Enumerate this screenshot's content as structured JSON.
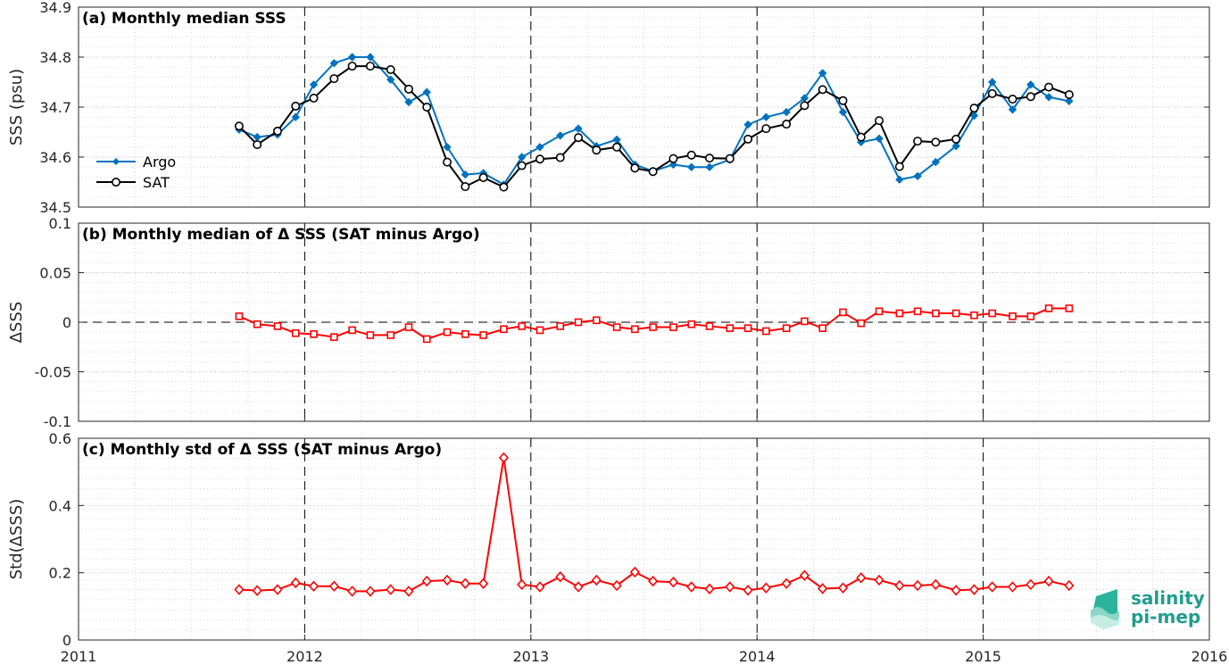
{
  "logo": {
    "line1": "salinity",
    "line2": "pi-mep"
  },
  "chart_data": [
    {
      "type": "line",
      "title": "(a) Monthly median SSS",
      "ylabel": "SSS (psu)",
      "xlim": [
        2011,
        2016
      ],
      "ylim": [
        34.5,
        34.9
      ],
      "yticks": [
        "34.5",
        "34.6",
        "34.7",
        "34.8",
        "34.9"
      ],
      "xticks": [
        "2011",
        "2012",
        "2013",
        "2014",
        "2015",
        "2016"
      ],
      "grid": true,
      "legend": "left",
      "x": [
        2011.71,
        2011.79,
        2011.88,
        2011.96,
        2012.04,
        2012.13,
        2012.21,
        2012.29,
        2012.38,
        2012.46,
        2012.54,
        2012.63,
        2012.71,
        2012.79,
        2012.88,
        2012.96,
        2013.04,
        2013.13,
        2013.21,
        2013.29,
        2013.38,
        2013.46,
        2013.54,
        2013.63,
        2013.71,
        2013.79,
        2013.88,
        2013.96,
        2014.04,
        2014.13,
        2014.21,
        2014.29,
        2014.38,
        2014.46,
        2014.54,
        2014.63,
        2014.71,
        2014.79,
        2014.88,
        2014.96,
        2015.04,
        2015.13,
        2015.21,
        2015.29,
        2015.38
      ],
      "series": [
        {
          "name": "Argo",
          "color": "#0072bd",
          "marker": "diamond",
          "values": [
            34.655,
            34.64,
            34.645,
            34.68,
            34.745,
            34.788,
            34.8,
            34.8,
            34.755,
            34.71,
            34.73,
            34.62,
            34.565,
            34.568,
            34.545,
            34.6,
            34.62,
            34.643,
            34.657,
            34.622,
            34.635,
            34.585,
            34.572,
            34.585,
            34.58,
            34.58,
            34.595,
            34.665,
            34.68,
            34.69,
            34.718,
            34.768,
            34.69,
            34.63,
            34.637,
            34.555,
            34.562,
            34.59,
            34.622,
            34.683,
            34.75,
            34.695,
            34.745,
            34.72,
            34.712
          ]
        },
        {
          "name": "SAT",
          "color": "#000000",
          "marker": "circle",
          "values": [
            34.662,
            34.625,
            34.652,
            34.702,
            34.718,
            34.757,
            34.782,
            34.782,
            34.775,
            34.736,
            34.7,
            34.59,
            34.541,
            34.559,
            34.54,
            34.583,
            34.596,
            34.599,
            34.639,
            34.614,
            34.62,
            34.578,
            34.571,
            34.597,
            34.604,
            34.598,
            34.597,
            34.636,
            34.657,
            34.666,
            34.703,
            34.735,
            34.713,
            34.64,
            34.673,
            34.581,
            34.632,
            34.63,
            34.636,
            34.698,
            34.727,
            34.716,
            34.721,
            34.74,
            34.725
          ]
        }
      ]
    },
    {
      "type": "line",
      "title": "(b) Monthly median of Δ SSS (SAT minus Argo)",
      "ylabel": "ΔSSS",
      "xlim": [
        2011,
        2016
      ],
      "ylim": [
        -0.1,
        0.1
      ],
      "yticks": [
        "-0.1",
        "-0.05",
        "0",
        "0.05",
        "0.1"
      ],
      "xticks": [
        "2011",
        "2012",
        "2013",
        "2014",
        "2015",
        "2016"
      ],
      "grid": true,
      "x": [
        2011.71,
        2011.79,
        2011.88,
        2011.96,
        2012.04,
        2012.13,
        2012.21,
        2012.29,
        2012.38,
        2012.46,
        2012.54,
        2012.63,
        2012.71,
        2012.79,
        2012.88,
        2012.96,
        2013.04,
        2013.13,
        2013.21,
        2013.29,
        2013.38,
        2013.46,
        2013.54,
        2013.63,
        2013.71,
        2013.79,
        2013.88,
        2013.96,
        2014.04,
        2014.13,
        2014.21,
        2014.29,
        2014.38,
        2014.46,
        2014.54,
        2014.63,
        2014.71,
        2014.79,
        2014.88,
        2014.96,
        2015.04,
        2015.13,
        2015.21,
        2015.29,
        2015.38
      ],
      "series": [
        {
          "color": "#ff0000",
          "marker": "square",
          "values": [
            0.006,
            -0.002,
            -0.004,
            -0.011,
            -0.012,
            -0.015,
            -0.008,
            -0.013,
            -0.013,
            -0.005,
            -0.017,
            -0.01,
            -0.012,
            -0.013,
            -0.007,
            -0.004,
            -0.008,
            -0.004,
            0,
            0.002,
            -0.005,
            -0.007,
            -0.005,
            -0.005,
            -0.002,
            -0.004,
            -0.006,
            -0.006,
            -0.009,
            -0.006,
            0.001,
            -0.006,
            0.01,
            -0.001,
            0.011,
            0.009,
            0.011,
            0.009,
            0.009,
            0.007,
            0.009,
            0.006,
            0.006,
            0.014,
            0.014
          ]
        }
      ]
    },
    {
      "type": "line",
      "title": "(c) Monthly std of Δ SSS (SAT minus Argo)",
      "ylabel": "Std(ΔSSS)",
      "xlim": [
        2011,
        2016
      ],
      "ylim": [
        0,
        0.6
      ],
      "yticks": [
        "0",
        "0.2",
        "0.4",
        "0.6"
      ],
      "xticks": [
        "2011",
        "2012",
        "2013",
        "2014",
        "2015",
        "2016"
      ],
      "grid": true,
      "x": [
        2011.71,
        2011.79,
        2011.88,
        2011.96,
        2012.04,
        2012.13,
        2012.21,
        2012.29,
        2012.38,
        2012.46,
        2012.54,
        2012.63,
        2012.71,
        2012.79,
        2012.88,
        2012.96,
        2013.04,
        2013.13,
        2013.21,
        2013.29,
        2013.38,
        2013.46,
        2013.54,
        2013.63,
        2013.71,
        2013.79,
        2013.88,
        2013.96,
        2014.04,
        2014.13,
        2014.21,
        2014.29,
        2014.38,
        2014.46,
        2014.54,
        2014.63,
        2014.71,
        2014.79,
        2014.88,
        2014.96,
        2015.04,
        2015.13,
        2015.21,
        2015.29,
        2015.38
      ],
      "series": [
        {
          "color": "#ff0000",
          "marker": "diamond",
          "values": [
            0.15,
            0.147,
            0.15,
            0.17,
            0.16,
            0.16,
            0.145,
            0.145,
            0.15,
            0.145,
            0.175,
            0.178,
            0.168,
            0.168,
            0.542,
            0.165,
            0.158,
            0.188,
            0.158,
            0.178,
            0.162,
            0.202,
            0.175,
            0.172,
            0.158,
            0.152,
            0.158,
            0.148,
            0.155,
            0.168,
            0.192,
            0.153,
            0.155,
            0.185,
            0.178,
            0.162,
            0.162,
            0.165,
            0.148,
            0.15,
            0.158,
            0.158,
            0.165,
            0.175,
            0.162
          ]
        }
      ]
    }
  ]
}
